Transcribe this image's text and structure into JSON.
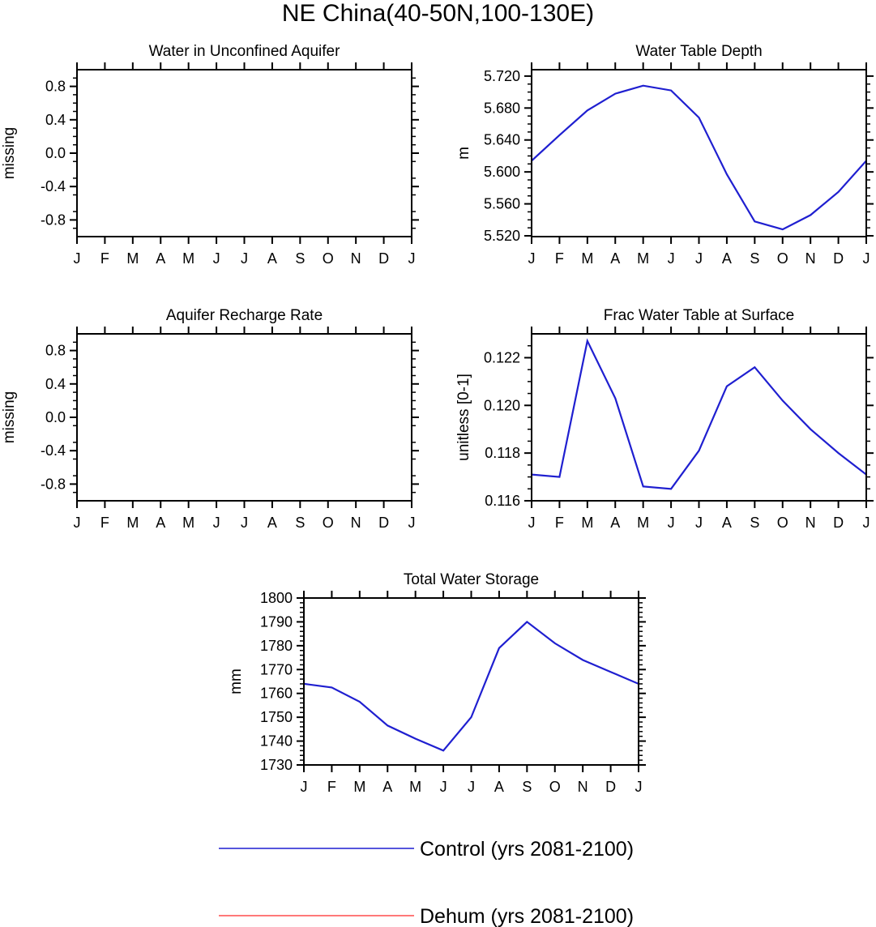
{
  "figure": {
    "title": "NE China(40-50N,100-130E)"
  },
  "chart_data": [
    {
      "type": "line",
      "title": "Water in Unconfined Aquifer",
      "xlabel": "",
      "ylabel": "missing",
      "categories": [
        "J",
        "F",
        "M",
        "A",
        "M",
        "J",
        "J",
        "A",
        "S",
        "O",
        "N",
        "D",
        "J"
      ],
      "yticks": [
        "0.8",
        "0.4",
        "0.0",
        "-0.4",
        "-0.8"
      ],
      "ylim": [
        -1.0,
        1.0
      ],
      "series": []
    },
    {
      "type": "line",
      "title": "Water Table Depth",
      "xlabel": "",
      "ylabel": "m",
      "categories": [
        "J",
        "F",
        "M",
        "A",
        "M",
        "J",
        "J",
        "A",
        "S",
        "O",
        "N",
        "D",
        "J"
      ],
      "yticks": [
        "5.720",
        "5.680",
        "5.640",
        "5.600",
        "5.560",
        "5.520"
      ],
      "ylim": [
        5.519,
        5.728
      ],
      "series": [
        {
          "name": "Control (yrs 2081-2100)",
          "color": "#1f1fd0",
          "values": [
            5.614,
            5.646,
            5.677,
            5.698,
            5.708,
            5.702,
            5.668,
            5.597,
            5.538,
            5.528,
            5.546,
            5.575,
            5.614
          ]
        }
      ]
    },
    {
      "type": "line",
      "title": "Aquifer Recharge Rate",
      "xlabel": "",
      "ylabel": "missing",
      "categories": [
        "J",
        "F",
        "M",
        "A",
        "M",
        "J",
        "J",
        "A",
        "S",
        "O",
        "N",
        "D",
        "J"
      ],
      "yticks": [
        "0.8",
        "0.4",
        "0.0",
        "-0.4",
        "-0.8"
      ],
      "ylim": [
        -1.0,
        1.0
      ],
      "series": []
    },
    {
      "type": "line",
      "title": "Frac Water Table at Surface",
      "xlabel": "",
      "ylabel": "unitless [0-1]",
      "categories": [
        "J",
        "F",
        "M",
        "A",
        "M",
        "J",
        "J",
        "A",
        "S",
        "O",
        "N",
        "D",
        "J"
      ],
      "yticks": [
        "0.122",
        "0.120",
        "0.118",
        "0.116"
      ],
      "ylim": [
        0.116,
        0.123
      ],
      "series": [
        {
          "name": "Control (yrs 2081-2100)",
          "color": "#1f1fd0",
          "values": [
            0.1171,
            0.117,
            0.1227,
            0.1203,
            0.1166,
            0.1165,
            0.1181,
            0.1208,
            0.1216,
            0.1202,
            0.119,
            0.118,
            0.1171
          ]
        }
      ]
    },
    {
      "type": "line",
      "title": "Total Water Storage",
      "xlabel": "",
      "ylabel": "mm",
      "categories": [
        "J",
        "F",
        "M",
        "A",
        "M",
        "J",
        "J",
        "A",
        "S",
        "O",
        "N",
        "D",
        "J"
      ],
      "yticks": [
        "1800",
        "1790",
        "1780",
        "1770",
        "1760",
        "1750",
        "1740",
        "1730"
      ],
      "ylim": [
        1730,
        1800
      ],
      "series": [
        {
          "name": "Control (yrs 2081-2100)",
          "color": "#1f1fd0",
          "values": [
            1764,
            1762.5,
            1756.5,
            1746.5,
            1741,
            1736,
            1750,
            1779,
            1790,
            1781,
            1774,
            1769,
            1764
          ]
        }
      ]
    }
  ],
  "legend": {
    "placement": "bottom",
    "entries": [
      {
        "label": "Control (yrs 2081-2100)",
        "color": "#1f1fd0"
      },
      {
        "label": "Dehum (yrs 2081-2100)",
        "color": "#ff4d4d"
      }
    ]
  }
}
